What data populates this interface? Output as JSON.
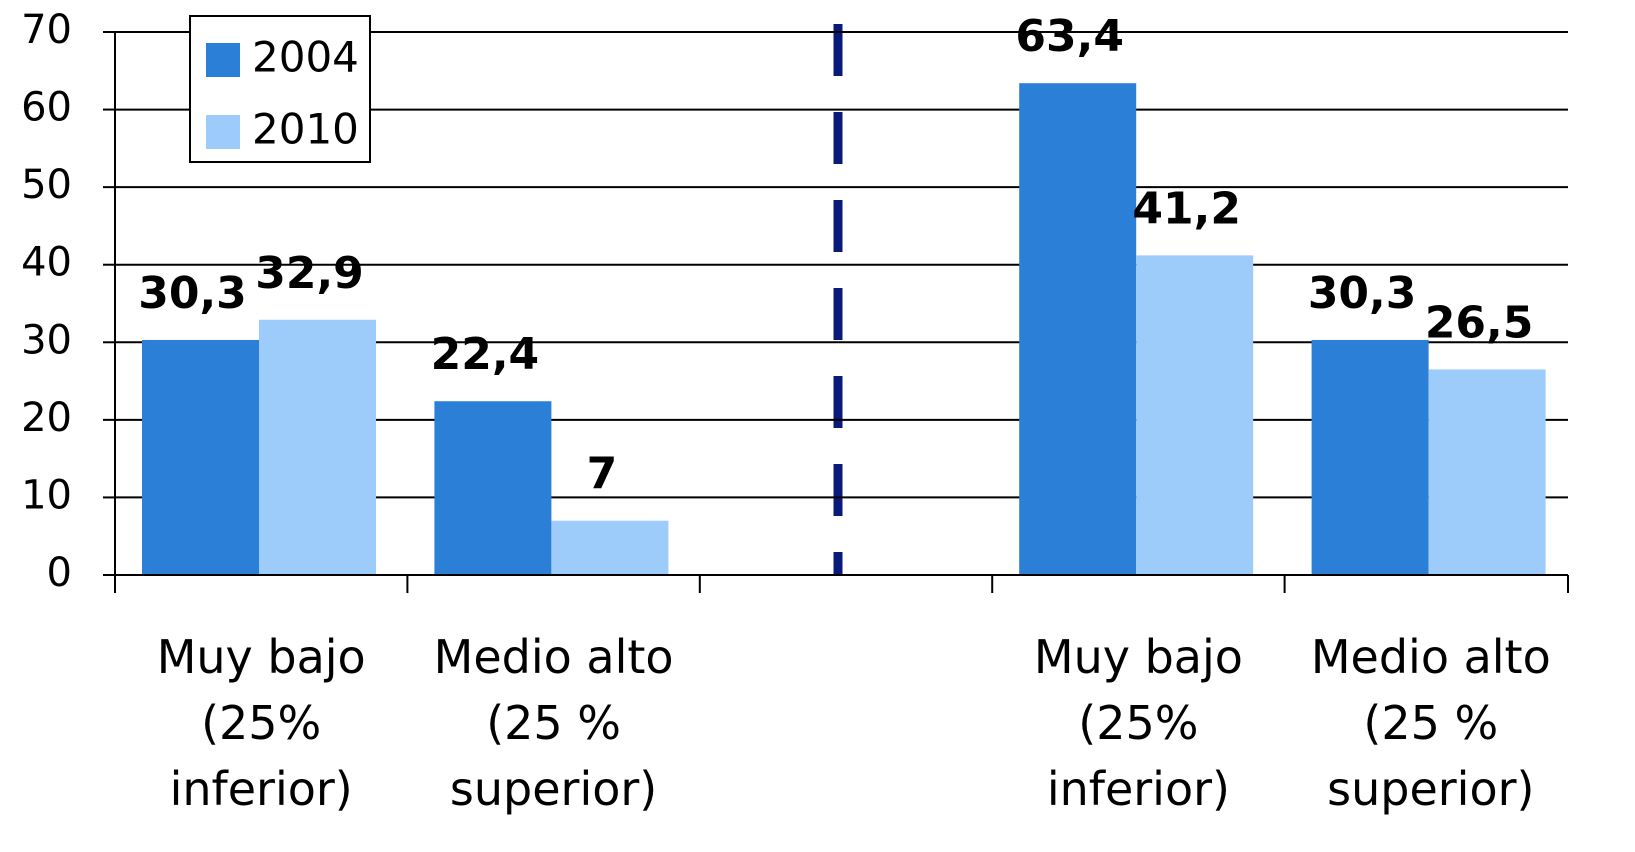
{
  "chart_data": {
    "type": "bar",
    "categories": [
      "Muy bajo (25% inferior)",
      "Medio alto (25 % superior)",
      null,
      "Muy bajo (25% inferior)",
      "Medio alto (25 % superior)"
    ],
    "series": [
      {
        "name": "2004",
        "color": "#2b7fd6",
        "values": [
          30.3,
          22.4,
          null,
          63.4,
          30.3
        ],
        "value_labels": [
          "30,3",
          "22,4",
          null,
          "63,4",
          "30,3"
        ]
      },
      {
        "name": "2010",
        "color": "#9dcbfa",
        "values": [
          32.9,
          7,
          null,
          41.2,
          26.5
        ],
        "value_labels": [
          "32,9",
          "7",
          null,
          "41,2",
          "26,5"
        ]
      }
    ],
    "ylim": [
      0,
      70
    ],
    "yticks": [
      0,
      10,
      20,
      30,
      40,
      50,
      60,
      70
    ],
    "grid": true,
    "legend": "top-left"
  }
}
